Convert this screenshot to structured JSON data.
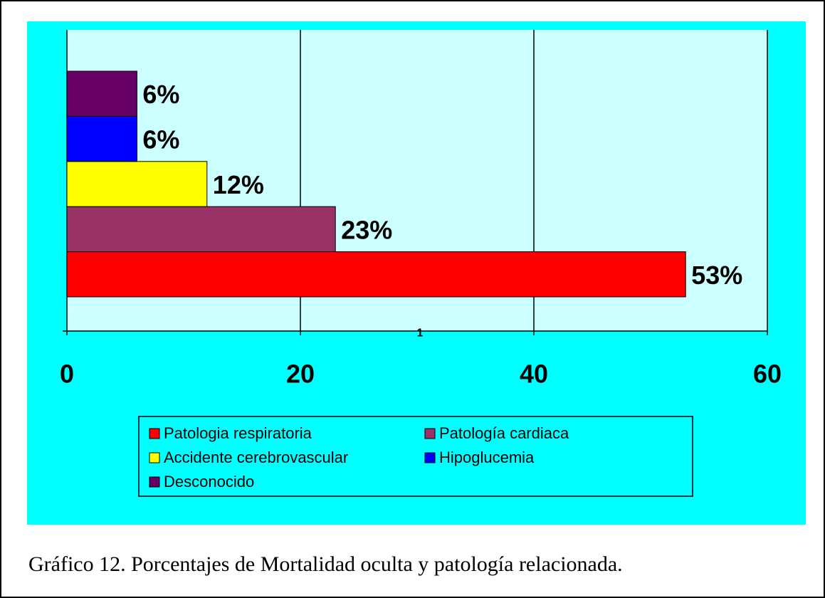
{
  "chart_data": {
    "type": "bar",
    "orientation": "horizontal",
    "categories": [
      "1"
    ],
    "series": [
      {
        "name": "Patologia respiratoria",
        "color": "#ff0000",
        "values": [
          53
        ],
        "value_labels": [
          "53%"
        ]
      },
      {
        "name": "Patología cardiaca",
        "color": "#993366",
        "values": [
          23
        ],
        "value_labels": [
          "23%"
        ]
      },
      {
        "name": "Accidente cerebrovascular",
        "color": "#ffff00",
        "values": [
          12
        ],
        "value_labels": [
          "12%"
        ]
      },
      {
        "name": "Hipoglucemia",
        "color": "#0000ff",
        "values": [
          6
        ],
        "value_labels": [
          "6%"
        ]
      },
      {
        "name": "Desconocido",
        "color": "#660066",
        "values": [
          6
        ],
        "value_labels": [
          "6%"
        ]
      }
    ],
    "xlim": [
      0,
      60
    ],
    "xticks": [
      0,
      20,
      40,
      60
    ],
    "grid": true,
    "legend": "bottom",
    "caption": "Gráfico 12. Porcentajes de Mortalidad oculta y patología relacionada."
  }
}
